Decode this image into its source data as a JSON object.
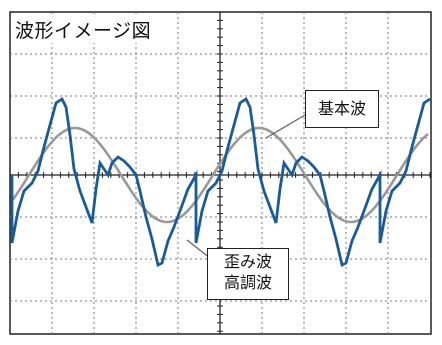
{
  "title": "波形イメージ図",
  "labels": {
    "base_wave": "基本波",
    "distorted_line1": "歪み波",
    "distorted_line2": "高調波"
  },
  "colors": {
    "base_wave": "#999999",
    "distorted_wave": "#1b5b96",
    "grid": "#777777",
    "axis": "#222222",
    "border": "#222222"
  },
  "chart_data": {
    "type": "line",
    "series": [
      {
        "role": "base_wave",
        "cycles": 2.5,
        "amplitude": 1.0
      },
      {
        "role": "distorted_wave",
        "cycles": 2.5,
        "harmonics": [
          [
            1,
            1.0
          ],
          [
            3,
            0.45
          ],
          [
            5,
            0.25
          ]
        ]
      }
    ]
  }
}
